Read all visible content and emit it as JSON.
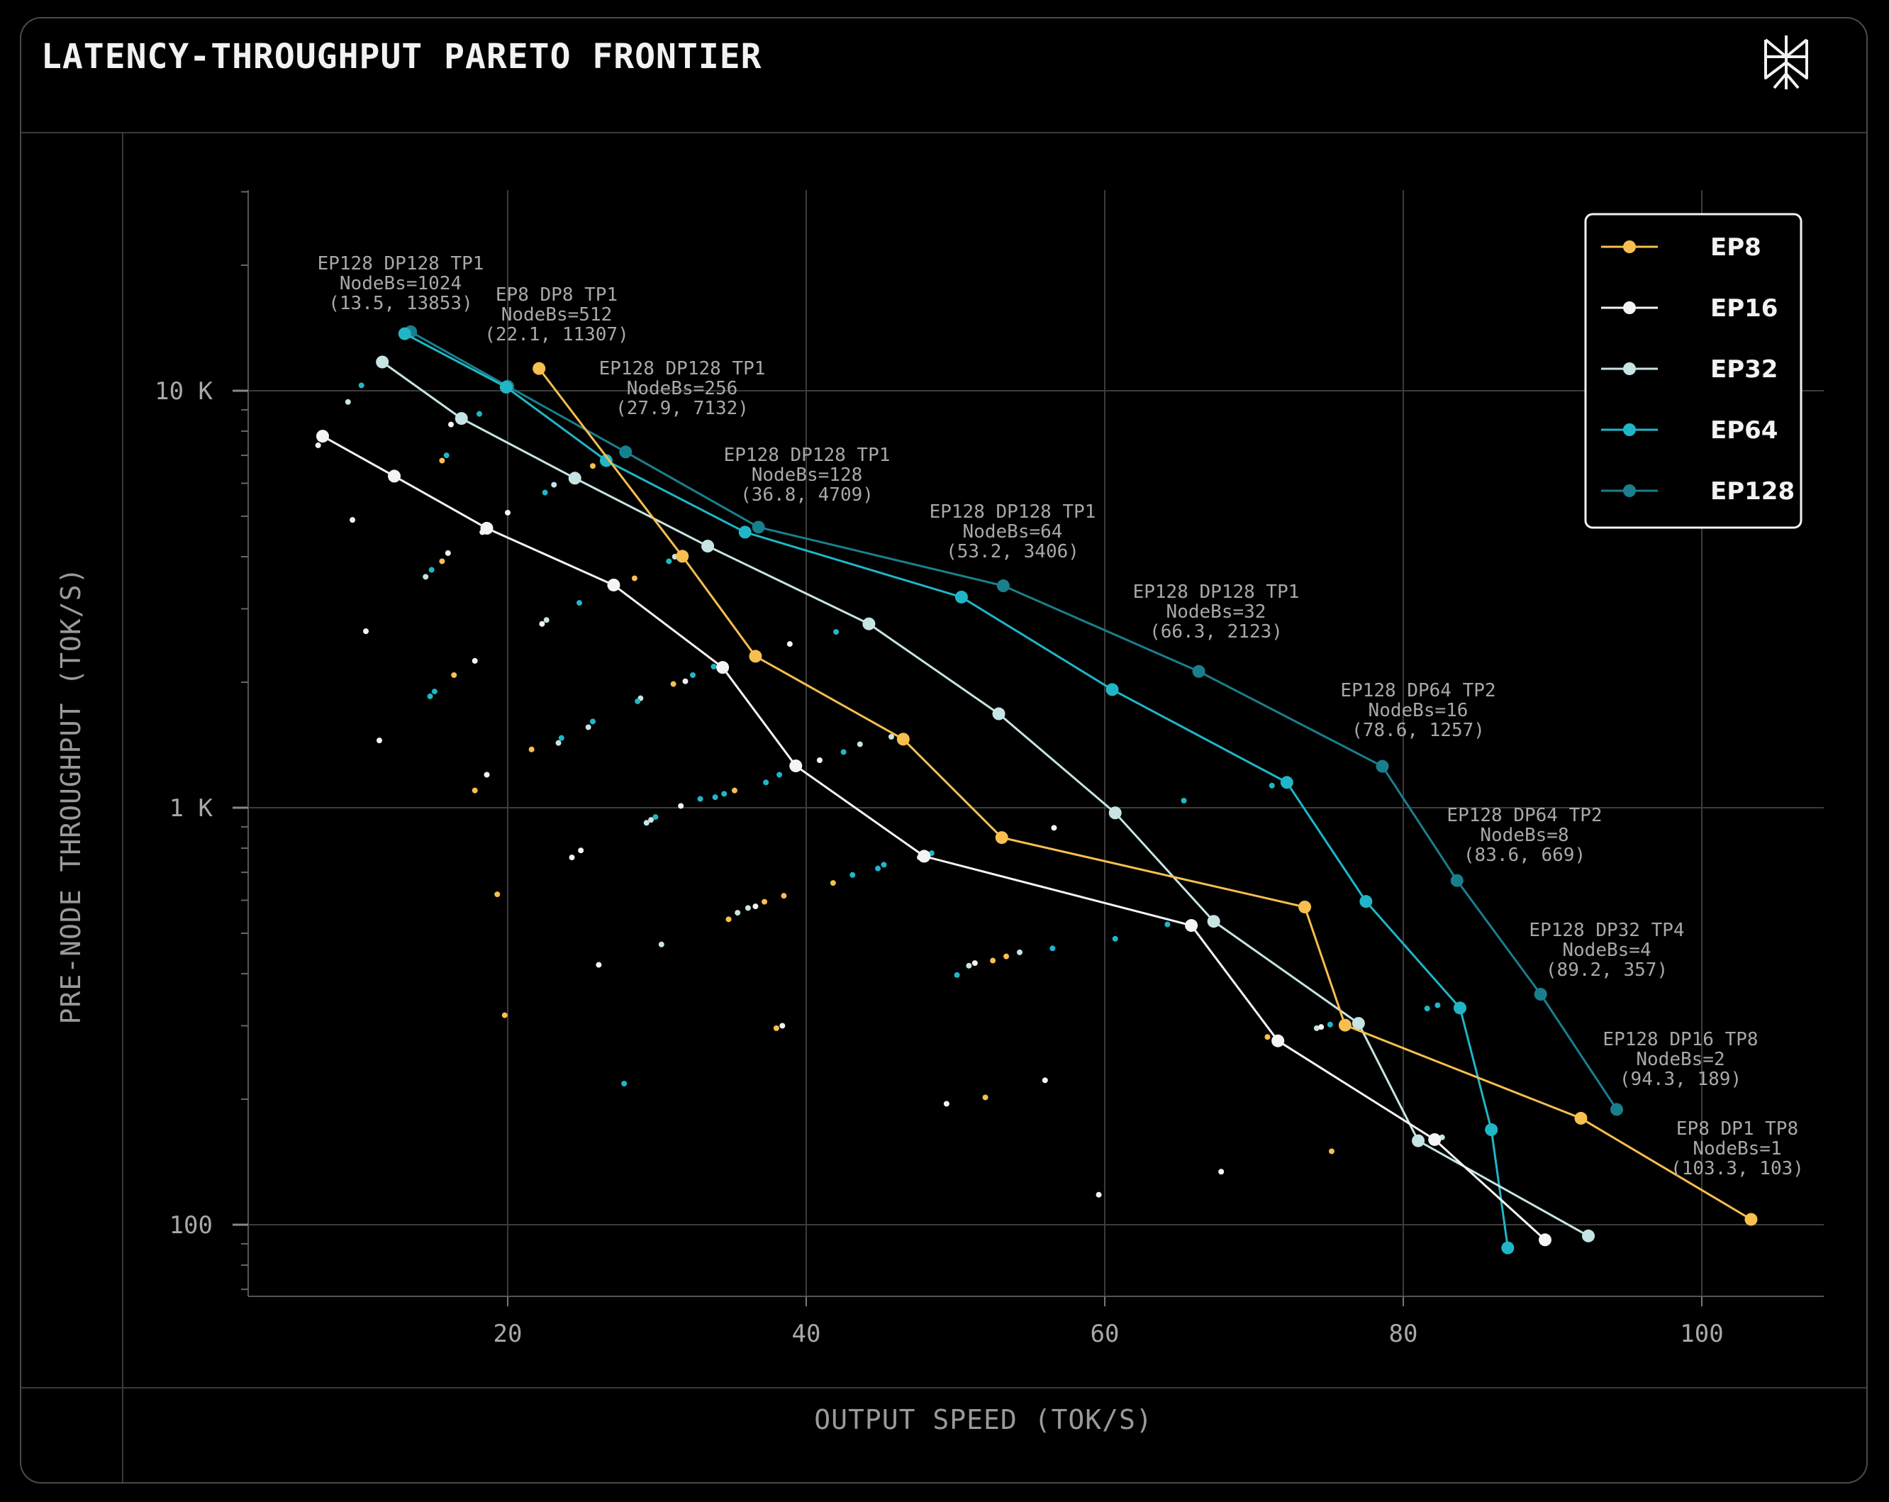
{
  "header": {
    "title": "LATENCY-THROUGHPUT PARETO FRONTIER"
  },
  "colors": {
    "EP8": "#f7bf4f",
    "EP16": "#f4f4f4",
    "EP32": "#c6e4e4",
    "EP64": "#20b6c8",
    "EP128": "#1a7f8c",
    "grid": "#3c3c3c",
    "text": "#a8a8a8",
    "background": "#000000"
  },
  "chart_data": {
    "type": "scatter",
    "title": "LATENCY-THROUGHPUT PARETO FRONTIER",
    "xlabel": "OUTPUT SPEED (TOK/S)",
    "ylabel": "PRE-NODE THROUGHPUT (TOK/S)",
    "xlim": [
      2,
      110
    ],
    "ylim": [
      68,
      35000
    ],
    "y_scale": "log",
    "x_ticks": [
      "20",
      "40",
      "60",
      "80",
      "100"
    ],
    "y_ticks": [
      "100",
      "1 K",
      "10 K"
    ],
    "grid": true,
    "legend_position": "top-right",
    "series": [
      {
        "name": "EP8",
        "color": "#f7bf4f",
        "points": [
          [
            22.1,
            11307
          ],
          [
            31.7,
            4009
          ],
          [
            36.6,
            2308
          ],
          [
            46.5,
            1460
          ],
          [
            53.1,
            848
          ],
          [
            73.4,
            578
          ],
          [
            76.1,
            301
          ],
          [
            91.9,
            180
          ],
          [
            103.3,
            103
          ]
        ]
      },
      {
        "name": "EP16",
        "color": "#f4f4f4",
        "points": [
          [
            7.6,
            7780
          ],
          [
            12.4,
            6240
          ],
          [
            18.6,
            4680
          ],
          [
            27.1,
            3420
          ],
          [
            34.4,
            2170
          ],
          [
            39.3,
            1260
          ],
          [
            47.9,
            765
          ],
          [
            65.8,
            522
          ],
          [
            71.6,
            276
          ],
          [
            82.1,
            160
          ],
          [
            89.5,
            92
          ]
        ]
      },
      {
        "name": "EP32",
        "color": "#c6e4e4",
        "points": [
          [
            11.6,
            11720
          ],
          [
            16.9,
            8580
          ],
          [
            24.5,
            6170
          ],
          [
            33.4,
            4240
          ],
          [
            44.2,
            2760
          ],
          [
            52.9,
            1680
          ],
          [
            60.7,
            972
          ],
          [
            67.3,
            534
          ],
          [
            77.0,
            304
          ],
          [
            81.0,
            159
          ],
          [
            92.4,
            94
          ]
        ]
      },
      {
        "name": "EP64",
        "color": "#20b6c8",
        "points": [
          [
            13.1,
            13700
          ],
          [
            19.9,
            10200
          ],
          [
            26.6,
            6800
          ],
          [
            35.9,
            4580
          ],
          [
            50.4,
            3200
          ],
          [
            60.5,
            1920
          ],
          [
            72.2,
            1150
          ],
          [
            77.5,
            596
          ],
          [
            83.8,
            331
          ],
          [
            85.9,
            169
          ],
          [
            87.0,
            88
          ]
        ]
      },
      {
        "name": "EP128",
        "color": "#1a7f8c",
        "points": [
          [
            13.5,
            13853
          ],
          [
            20.0,
            10250
          ],
          [
            27.9,
            7132
          ],
          [
            36.8,
            4709
          ],
          [
            53.2,
            3406
          ],
          [
            66.3,
            2123
          ],
          [
            78.6,
            1257
          ],
          [
            83.6,
            669
          ],
          [
            89.2,
            357
          ],
          [
            94.3,
            189
          ]
        ]
      }
    ],
    "annotations": [
      {
        "lines": [
          "EP128 DP128 TP1",
          "NodeBs=1024",
          "(13.5, 13853)"
        ]
      },
      {
        "lines": [
          "EP8 DP8 TP1",
          "NodeBs=512",
          "(22.1, 11307)"
        ]
      },
      {
        "lines": [
          "EP128 DP128 TP1",
          "NodeBs=256",
          "(27.9, 7132)"
        ]
      },
      {
        "lines": [
          "EP128 DP128 TP1",
          "NodeBs=128",
          "(36.8, 4709)"
        ]
      },
      {
        "lines": [
          "EP128 DP128 TP1",
          "NodeBs=64",
          "(53.2, 3406)"
        ]
      },
      {
        "lines": [
          "EP128 DP128 TP1",
          "NodeBs=32",
          "(66.3, 2123)"
        ]
      },
      {
        "lines": [
          "EP128 DP64 TP2",
          "NodeBs=16",
          "(78.6, 1257)"
        ]
      },
      {
        "lines": [
          "EP128 DP64 TP2",
          "NodeBs=8",
          "(83.6, 669)"
        ]
      },
      {
        "lines": [
          "EP128 DP32 TP4",
          "NodeBs=4",
          "(89.2, 357)"
        ]
      },
      {
        "lines": [
          "EP128 DP16 TP8",
          "NodeBs=2",
          "(94.3, 189)"
        ]
      },
      {
        "lines": [
          "EP8 DP1 TP8",
          "NodeBs=1",
          "(103.3, 103)"
        ]
      }
    ],
    "background_points": [
      [
        "EP16",
        7.3,
        7400
      ],
      [
        "EP32",
        9.3,
        9400
      ],
      [
        "EP64",
        10.2,
        10300
      ],
      [
        "EP16",
        9.6,
        4900
      ],
      [
        "EP16",
        10.5,
        2650
      ],
      [
        "EP16",
        11.4,
        1450
      ],
      [
        "EP8",
        15.6,
        6800
      ],
      [
        "EP64",
        15.9,
        7000
      ],
      [
        "EP32",
        14.5,
        3580
      ],
      [
        "EP64",
        14.9,
        3720
      ],
      [
        "EP8",
        15.6,
        3900
      ],
      [
        "EP16",
        16.0,
        4080
      ],
      [
        "EP8",
        16.4,
        2080
      ],
      [
        "EP16",
        17.8,
        2250
      ],
      [
        "EP64",
        14.8,
        1850
      ],
      [
        "EP64",
        15.1,
        1900
      ],
      [
        "EP16",
        16.2,
        8300
      ],
      [
        "EP64",
        18.1,
        8800
      ],
      [
        "EP8",
        17.8,
        1100
      ],
      [
        "EP16",
        18.6,
        1200
      ],
      [
        "EP16",
        20.0,
        5100
      ],
      [
        "EP8",
        19.3,
        620
      ],
      [
        "EP8",
        19.8,
        318
      ],
      [
        "EP16",
        18.3,
        4580
      ],
      [
        "EP8",
        21.6,
        1380
      ],
      [
        "EP16",
        22.3,
        2760
      ],
      [
        "EP32",
        22.6,
        2820
      ],
      [
        "EP64",
        22.5,
        5700
      ],
      [
        "EP32",
        23.1,
        5950
      ],
      [
        "EP32",
        23.4,
        1430
      ],
      [
        "EP64",
        23.6,
        1470
      ],
      [
        "EP16",
        24.3,
        760
      ],
      [
        "EP16",
        24.9,
        790
      ],
      [
        "EP64",
        24.8,
        3100
      ],
      [
        "EP32",
        25.4,
        1560
      ],
      [
        "EP64",
        25.7,
        1610
      ],
      [
        "EP8",
        25.7,
        6600
      ],
      [
        "EP16",
        26.1,
        420
      ],
      [
        "EP64",
        27.8,
        218
      ],
      [
        "EP8",
        28.5,
        3550
      ],
      [
        "EP32",
        28.9,
        1830
      ],
      [
        "EP64",
        28.7,
        1800
      ],
      [
        "EP32",
        29.3,
        920
      ],
      [
        "EP32",
        29.6,
        935
      ],
      [
        "EP64",
        29.9,
        950
      ],
      [
        "EP32",
        30.3,
        470
      ],
      [
        "EP8",
        31.1,
        1980
      ],
      [
        "EP16",
        31.6,
        1010
      ],
      [
        "EP64",
        30.8,
        3900
      ],
      [
        "EP32",
        31.2,
        4000
      ],
      [
        "EP16",
        31.9,
        2010
      ],
      [
        "EP64",
        32.4,
        2080
      ],
      [
        "EP64",
        32.9,
        1050
      ],
      [
        "EP32",
        33.4,
        4180
      ],
      [
        "EP64",
        33.8,
        2180
      ],
      [
        "EP64",
        33.9,
        1060
      ],
      [
        "EP64",
        34.5,
        1080
      ],
      [
        "EP8",
        35.2,
        1100
      ],
      [
        "EP8",
        34.8,
        540
      ],
      [
        "EP64",
        35.8,
        4500
      ],
      [
        "EP32",
        35.4,
        560
      ],
      [
        "EP32",
        36.1,
        575
      ],
      [
        "EP16",
        36.6,
        580
      ],
      [
        "EP8",
        37.2,
        595
      ],
      [
        "EP8",
        38.5,
        615
      ],
      [
        "EP64",
        37.3,
        1150
      ],
      [
        "EP64",
        38.2,
        1200
      ],
      [
        "EP8",
        38.0,
        296
      ],
      [
        "EP16",
        38.4,
        300
      ],
      [
        "EP16",
        38.9,
        2470
      ],
      [
        "EP16",
        40.9,
        1300
      ],
      [
        "EP64",
        42.0,
        2640
      ],
      [
        "EP8",
        41.8,
        660
      ],
      [
        "EP64",
        42.5,
        1360
      ],
      [
        "EP32",
        43.6,
        1420
      ],
      [
        "EP64",
        43.1,
        690
      ],
      [
        "EP64",
        44.8,
        715
      ],
      [
        "EP64",
        45.2,
        730
      ],
      [
        "EP32",
        45.7,
        1480
      ],
      [
        "EP32",
        47.6,
        760
      ],
      [
        "EP64",
        48.4,
        778
      ],
      [
        "EP16",
        49.4,
        195
      ],
      [
        "EP64",
        50.1,
        397
      ],
      [
        "EP32",
        50.9,
        418
      ],
      [
        "EP16",
        51.3,
        424
      ],
      [
        "EP8",
        52.0,
        202
      ],
      [
        "EP8",
        52.5,
        430
      ],
      [
        "EP8",
        53.4,
        440
      ],
      [
        "EP32",
        54.3,
        450
      ],
      [
        "EP16",
        56.0,
        222
      ],
      [
        "EP16",
        56.6,
        895
      ],
      [
        "EP64",
        56.5,
        460
      ],
      [
        "EP16",
        59.6,
        118
      ],
      [
        "EP64",
        60.7,
        485
      ],
      [
        "EP64",
        64.2,
        525
      ],
      [
        "EP64",
        65.3,
        1040
      ],
      [
        "EP16",
        67.8,
        134
      ],
      [
        "EP8",
        70.9,
        282
      ],
      [
        "EP64",
        71.2,
        1130
      ],
      [
        "EP64",
        73.2,
        575
      ],
      [
        "EP32",
        74.2,
        296
      ],
      [
        "EP16",
        74.5,
        298
      ],
      [
        "EP64",
        75.1,
        302
      ],
      [
        "EP8",
        75.2,
        150
      ],
      [
        "EP64",
        81.6,
        330
      ],
      [
        "EP64",
        82.3,
        336
      ],
      [
        "EP32",
        82.6,
        162
      ]
    ]
  }
}
